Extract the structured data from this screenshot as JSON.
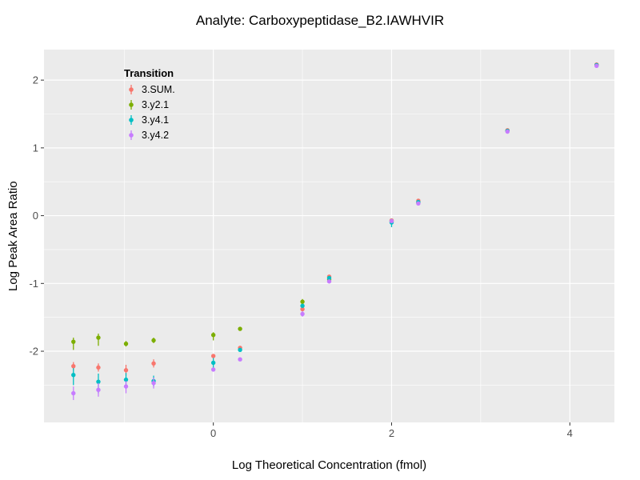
{
  "chart_data": {
    "type": "scatter",
    "title": "Analyte: Carboxypeptidase_B2.IAWHVIR",
    "xlabel": "Log Theoretical Concentration (fmol)",
    "ylabel": "Log Peak Area Ratio",
    "xlim": [
      -1.9,
      4.5
    ],
    "ylim": [
      -3.05,
      2.45
    ],
    "x_major_ticks": [
      0,
      2,
      4
    ],
    "x_minor_ticks": [
      -1,
      1,
      3
    ],
    "y_major_ticks": [
      -2,
      -1,
      0,
      1,
      2
    ],
    "y_minor_ticks": [
      -2.5,
      -1.5,
      -0.5,
      0.5,
      1.5
    ],
    "panel_bg": "#EBEBEB",
    "grid_color": "#FFFFFF",
    "tick_label_color": "#4D4D4D",
    "legend": {
      "title": "Transition"
    },
    "series": [
      {
        "name": "3.SUM.",
        "color": "#F8766D",
        "points": [
          [
            -1.57,
            -2.22,
            -2.28,
            -2.16
          ],
          [
            -1.29,
            -2.24,
            -2.3,
            -2.18
          ],
          [
            -0.98,
            -2.28,
            -2.36,
            -2.2
          ],
          [
            -0.67,
            -2.18,
            -2.24,
            -2.12
          ],
          [
            0,
            -2.07,
            -2.07,
            -2.07
          ],
          [
            0.3,
            -1.95,
            -1.95,
            -1.95
          ],
          [
            1,
            -1.38,
            -1.38,
            -1.38
          ],
          [
            1.3,
            -0.9,
            -0.9,
            -0.9
          ],
          [
            2,
            -0.07,
            -0.07,
            -0.07
          ],
          [
            2.3,
            0.22,
            0.22,
            0.22
          ],
          [
            3.3,
            1.26,
            1.26,
            1.26
          ],
          [
            4.3,
            2.23,
            2.23,
            2.23
          ]
        ]
      },
      {
        "name": "3.y2.1",
        "color": "#7CAE00",
        "points": [
          [
            -1.57,
            -1.86,
            -1.98,
            -1.8
          ],
          [
            -1.29,
            -1.8,
            -1.92,
            -1.74
          ],
          [
            -0.98,
            -1.89,
            -1.93,
            -1.85
          ],
          [
            -0.67,
            -1.84,
            -1.88,
            -1.8
          ],
          [
            0,
            -1.76,
            -1.84,
            -1.72
          ],
          [
            0.3,
            -1.67,
            -1.67,
            -1.67
          ],
          [
            1,
            -1.27,
            -1.31,
            -1.23
          ],
          [
            1.3,
            -0.94,
            -0.94,
            -0.94
          ],
          [
            2,
            -0.08,
            -0.08,
            -0.08
          ],
          [
            2.3,
            0.19,
            0.19,
            0.19
          ],
          [
            3.3,
            1.25,
            1.25,
            1.25
          ],
          [
            4.3,
            2.22,
            2.22,
            2.22
          ]
        ]
      },
      {
        "name": "3.y4.1",
        "color": "#00BFC4",
        "points": [
          [
            -1.57,
            -2.35,
            -2.5,
            -2.25
          ],
          [
            -1.29,
            -2.45,
            -2.62,
            -2.33
          ],
          [
            -0.98,
            -2.42,
            -2.55,
            -2.32
          ],
          [
            -0.67,
            -2.44,
            -2.52,
            -2.36
          ],
          [
            0,
            -2.17,
            -2.3,
            -2.1
          ],
          [
            0.3,
            -1.98,
            -1.98,
            -1.98
          ],
          [
            1,
            -1.33,
            -1.33,
            -1.33
          ],
          [
            1.3,
            -0.92,
            -0.92,
            -0.92
          ],
          [
            2,
            -0.1,
            -0.17,
            -0.05
          ],
          [
            2.3,
            0.2,
            0.2,
            0.2
          ],
          [
            3.3,
            1.25,
            1.25,
            1.25
          ],
          [
            4.3,
            2.22,
            2.22,
            2.22
          ]
        ]
      },
      {
        "name": "3.y4.2",
        "color": "#C77CFF",
        "points": [
          [
            -1.57,
            -2.62,
            -2.72,
            -2.52
          ],
          [
            -1.29,
            -2.57,
            -2.67,
            -2.47
          ],
          [
            -0.98,
            -2.52,
            -2.62,
            -2.44
          ],
          [
            -0.67,
            -2.47,
            -2.55,
            -2.39
          ],
          [
            0,
            -2.27,
            -2.27,
            -2.27
          ],
          [
            0.3,
            -2.12,
            -2.12,
            -2.12
          ],
          [
            1,
            -1.45,
            -1.49,
            -1.41
          ],
          [
            1.3,
            -0.97,
            -0.97,
            -0.97
          ],
          [
            2,
            -0.08,
            -0.08,
            -0.08
          ],
          [
            2.3,
            0.18,
            0.18,
            0.18
          ],
          [
            3.3,
            1.24,
            1.24,
            1.24
          ],
          [
            4.3,
            2.21,
            2.21,
            2.21
          ]
        ]
      }
    ]
  }
}
